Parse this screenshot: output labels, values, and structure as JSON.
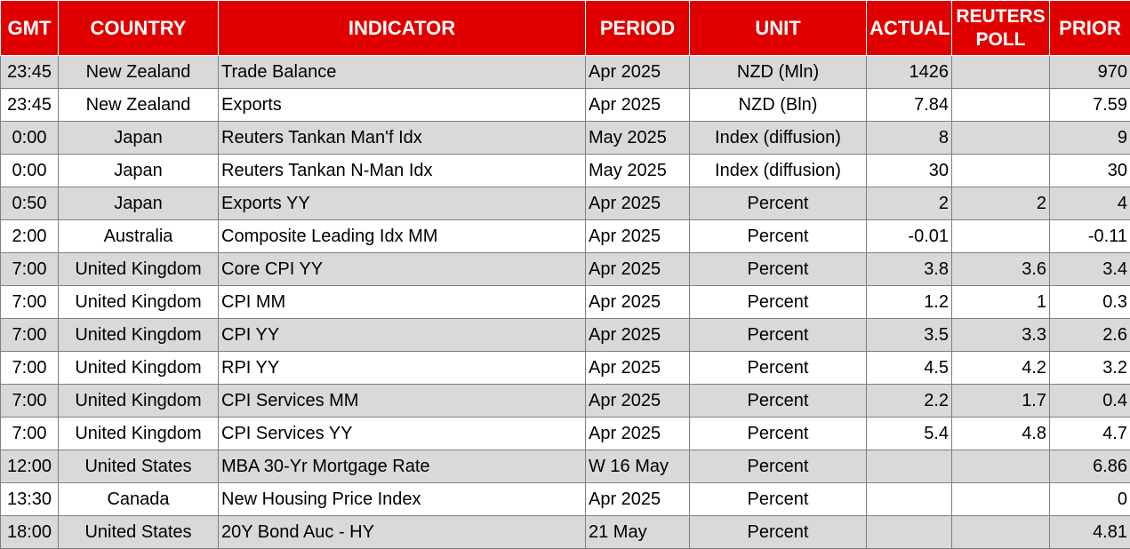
{
  "headers": {
    "gmt": "GMT",
    "country": "COUNTRY",
    "indicator": "INDICATOR",
    "period": "PERIOD",
    "unit": "UNIT",
    "actual": "ACTUAL",
    "poll_line1": "REUTERS",
    "poll_line2": "POLL",
    "prior": "PRIOR"
  },
  "rows": [
    {
      "gmt": "23:45",
      "country": "New Zealand",
      "indicator": "Trade Balance",
      "period": "Apr 2025",
      "unit": "NZD (Mln)",
      "actual": "1426",
      "poll": "",
      "prior": "970"
    },
    {
      "gmt": "23:45",
      "country": "New Zealand",
      "indicator": "Exports",
      "period": "Apr 2025",
      "unit": "NZD (Bln)",
      "actual": "7.84",
      "poll": "",
      "prior": "7.59"
    },
    {
      "gmt": "0:00",
      "country": "Japan",
      "indicator": "Reuters Tankan Man'f Idx",
      "period": "May 2025",
      "unit": "Index (diffusion)",
      "actual": "8",
      "poll": "",
      "prior": "9"
    },
    {
      "gmt": "0:00",
      "country": "Japan",
      "indicator": "Reuters Tankan N-Man Idx",
      "period": "May 2025",
      "unit": "Index (diffusion)",
      "actual": "30",
      "poll": "",
      "prior": "30"
    },
    {
      "gmt": "0:50",
      "country": "Japan",
      "indicator": "Exports YY",
      "period": "Apr 2025",
      "unit": "Percent",
      "actual": "2",
      "poll": "2",
      "prior": "4"
    },
    {
      "gmt": "2:00",
      "country": "Australia",
      "indicator": "Composite Leading Idx MM",
      "period": "Apr 2025",
      "unit": "Percent",
      "actual": "-0.01",
      "poll": "",
      "prior": "-0.11"
    },
    {
      "gmt": "7:00",
      "country": "United Kingdom",
      "indicator": "Core CPI YY",
      "period": "Apr 2025",
      "unit": "Percent",
      "actual": "3.8",
      "poll": "3.6",
      "prior": "3.4"
    },
    {
      "gmt": "7:00",
      "country": "United Kingdom",
      "indicator": "CPI MM",
      "period": "Apr 2025",
      "unit": "Percent",
      "actual": "1.2",
      "poll": "1",
      "prior": "0.3"
    },
    {
      "gmt": "7:00",
      "country": "United Kingdom",
      "indicator": "CPI YY",
      "period": "Apr 2025",
      "unit": "Percent",
      "actual": "3.5",
      "poll": "3.3",
      "prior": "2.6"
    },
    {
      "gmt": "7:00",
      "country": "United Kingdom",
      "indicator": "RPI YY",
      "period": "Apr 2025",
      "unit": "Percent",
      "actual": "4.5",
      "poll": "4.2",
      "prior": "3.2"
    },
    {
      "gmt": "7:00",
      "country": "United Kingdom",
      "indicator": "CPI Services MM",
      "period": "Apr 2025",
      "unit": "Percent",
      "actual": "2.2",
      "poll": "1.7",
      "prior": "0.4"
    },
    {
      "gmt": "7:00",
      "country": "United Kingdom",
      "indicator": "CPI Services YY",
      "period": "Apr 2025",
      "unit": "Percent",
      "actual": "5.4",
      "poll": "4.8",
      "prior": "4.7"
    },
    {
      "gmt": "12:00",
      "country": "United States",
      "indicator": "MBA 30-Yr Mortgage Rate",
      "period": "W 16 May",
      "unit": "Percent",
      "actual": "",
      "poll": "",
      "prior": "6.86"
    },
    {
      "gmt": "13:30",
      "country": "Canada",
      "indicator": "New Housing Price Index",
      "period": "Apr 2025",
      "unit": "Percent",
      "actual": "",
      "poll": "",
      "prior": "0"
    },
    {
      "gmt": "18:00",
      "country": "United States",
      "indicator": "20Y Bond Auc - HY",
      "period": "21 May",
      "unit": "Percent",
      "actual": "",
      "poll": "",
      "prior": "4.81"
    }
  ],
  "colors": {
    "header_bg": "#e00000",
    "header_text": "#ffffff",
    "row_alt_bg": "#d9d9d9",
    "row_bg": "#ffffff",
    "grid": "#7f7f7f"
  }
}
